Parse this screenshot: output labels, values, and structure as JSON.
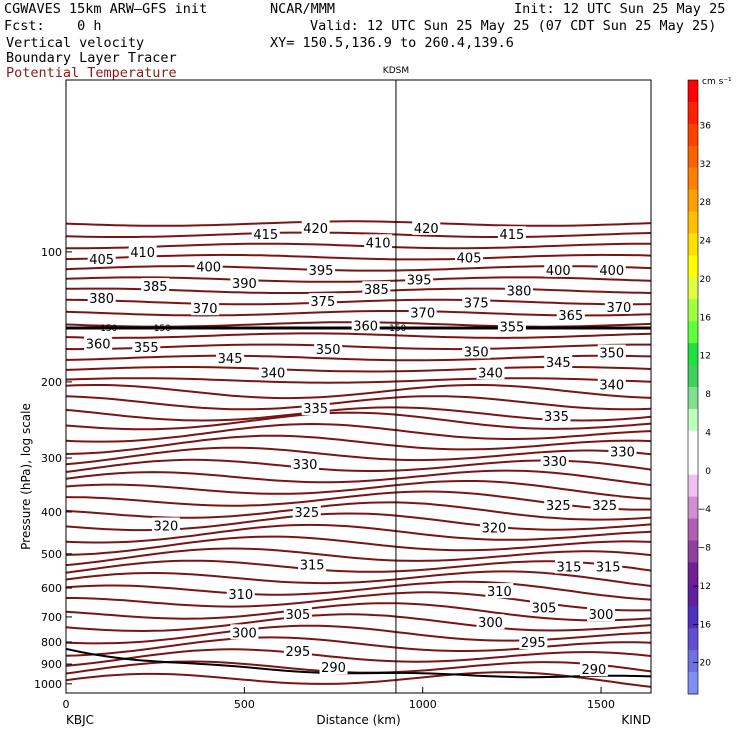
{
  "header": {
    "model": "CGWAVES 15km ARW—GFS init",
    "org": "NCAR/MMM",
    "init": "Init: 12 UTC Sun 25 May 25",
    "fcst": "Fcst:    0 h",
    "valid": "Valid: 12 UTC Sun 25 May 25 (07 CDT Sun 25 May 25)",
    "field1": "Vertical velocity",
    "field2": "Boundary Layer Tracer",
    "field3": "Potential Temperature",
    "xy": "XY= 150.5,136.9 to 260.4,139.6"
  },
  "colors": {
    "contour": "#7a1515",
    "accent_label": "#8b1a1a"
  },
  "chart_data": {
    "type": "line",
    "station_mid": "KDSM",
    "station_left": "KBJC",
    "station_right": "KIND",
    "xlabel": "Distance (km)",
    "ylabel": "Pressure (hPa), log scale",
    "x_ticks": [
      "0",
      "500",
      "1000",
      "1500"
    ],
    "x_range": [
      0,
      1640
    ],
    "mid_station_km": 925,
    "y_ticks": [
      "100",
      "200",
      "300",
      "400",
      "500",
      "600",
      "700",
      "800",
      "900",
      "1000"
    ],
    "y_range": [
      1050,
      40
    ],
    "tropopause_label": "150",
    "tropopause_hpa": 150,
    "contour_labels": [
      {
        "v": "420",
        "x": 700,
        "p": 88
      },
      {
        "v": "415",
        "x": 560,
        "p": 91
      },
      {
        "v": "410",
        "x": 215,
        "p": 100
      },
      {
        "v": "405",
        "x": 100,
        "p": 104
      },
      {
        "v": "400",
        "x": 400,
        "p": 108
      },
      {
        "v": "395",
        "x": 715,
        "p": 110
      },
      {
        "v": "390",
        "x": 500,
        "p": 118
      },
      {
        "v": "385",
        "x": 250,
        "p": 120
      },
      {
        "v": "380",
        "x": 100,
        "p": 128
      },
      {
        "v": "375",
        "x": 720,
        "p": 130
      },
      {
        "v": "370",
        "x": 390,
        "p": 135
      },
      {
        "v": "360",
        "x": 90,
        "p": 163
      },
      {
        "v": "355",
        "x": 225,
        "p": 166
      },
      {
        "v": "350",
        "x": 735,
        "p": 168
      },
      {
        "v": "345",
        "x": 460,
        "p": 176
      },
      {
        "v": "340",
        "x": 580,
        "p": 190
      },
      {
        "v": "335",
        "x": 700,
        "p": 230
      },
      {
        "v": "330",
        "x": 670,
        "p": 310
      },
      {
        "v": "325",
        "x": 675,
        "p": 400
      },
      {
        "v": "320",
        "x": 280,
        "p": 430
      },
      {
        "v": "315",
        "x": 690,
        "p": 530
      },
      {
        "v": "310",
        "x": 490,
        "p": 620
      },
      {
        "v": "305",
        "x": 650,
        "p": 690
      },
      {
        "v": "300",
        "x": 500,
        "p": 760
      },
      {
        "v": "295",
        "x": 650,
        "p": 840
      },
      {
        "v": "290",
        "x": 750,
        "p": 915
      },
      {
        "v": "420",
        "x": 1010,
        "p": 88
      },
      {
        "v": "415",
        "x": 1250,
        "p": 91
      },
      {
        "v": "410",
        "x": 875,
        "p": 95
      },
      {
        "v": "405",
        "x": 1130,
        "p": 103
      },
      {
        "v": "400",
        "x": 1380,
        "p": 110
      },
      {
        "v": "400",
        "x": 1530,
        "p": 110
      },
      {
        "v": "395",
        "x": 990,
        "p": 116
      },
      {
        "v": "385",
        "x": 870,
        "p": 122
      },
      {
        "v": "380",
        "x": 1270,
        "p": 123
      },
      {
        "v": "375",
        "x": 1150,
        "p": 131
      },
      {
        "v": "370",
        "x": 1000,
        "p": 138
      },
      {
        "v": "370",
        "x": 1550,
        "p": 134
      },
      {
        "v": "365",
        "x": 1415,
        "p": 140
      },
      {
        "v": "360",
        "x": 840,
        "p": 148
      },
      {
        "v": "355",
        "x": 1250,
        "p": 149
      },
      {
        "v": "350",
        "x": 1150,
        "p": 170
      },
      {
        "v": "350",
        "x": 1530,
        "p": 171
      },
      {
        "v": "345",
        "x": 1380,
        "p": 180
      },
      {
        "v": "340",
        "x": 1190,
        "p": 190
      },
      {
        "v": "340",
        "x": 1530,
        "p": 203
      },
      {
        "v": "335",
        "x": 1375,
        "p": 240
      },
      {
        "v": "330",
        "x": 1370,
        "p": 305
      },
      {
        "v": "330",
        "x": 1560,
        "p": 290
      },
      {
        "v": "325",
        "x": 1380,
        "p": 385
      },
      {
        "v": "325",
        "x": 1510,
        "p": 385
      },
      {
        "v": "320",
        "x": 1200,
        "p": 435
      },
      {
        "v": "315",
        "x": 1410,
        "p": 535
      },
      {
        "v": "315",
        "x": 1520,
        "p": 535
      },
      {
        "v": "310",
        "x": 1215,
        "p": 610
      },
      {
        "v": "305",
        "x": 1340,
        "p": 665
      },
      {
        "v": "300",
        "x": 1190,
        "p": 720
      },
      {
        "v": "300",
        "x": 1500,
        "p": 690
      },
      {
        "v": "295",
        "x": 1310,
        "p": 800
      },
      {
        "v": "290",
        "x": 1480,
        "p": 925
      }
    ],
    "colorbar": {
      "units": "cm s⁻¹",
      "labels": [
        "36",
        "32",
        "28",
        "24",
        "20",
        "16",
        "12",
        "8",
        "4",
        "0",
        "−4",
        "−8",
        "−12",
        "−16",
        "−20"
      ],
      "colors": [
        "#ff0000",
        "#ff2000",
        "#ff4000",
        "#ff6000",
        "#ff8000",
        "#ffa000",
        "#ffc000",
        "#ffe000",
        "#ffff00",
        "#e0ff40",
        "#a0ff40",
        "#60ff40",
        "#20e040",
        "#40d060",
        "#80e090",
        "#c0ffc0",
        "#ffffff",
        "#ffffff",
        "#f0c0f0",
        "#d090d0",
        "#b060b0",
        "#9040a0",
        "#702090",
        "#6020a0",
        "#5030c0",
        "#6050d0",
        "#7070e0",
        "#8090f0"
      ]
    }
  }
}
